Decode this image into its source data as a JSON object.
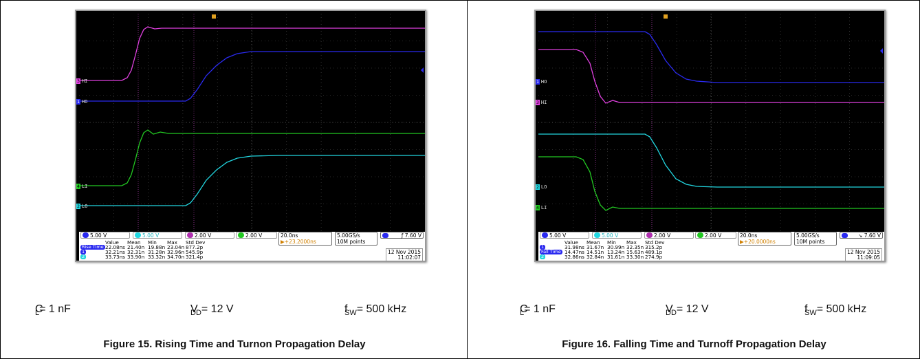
{
  "figures": [
    {
      "id": "fig15",
      "caption": "Figure 15. Rising Time and Turnon Propagation Delay",
      "conditions": {
        "cl": {
          "sym": "C",
          "sub": "L",
          "val": " = 1 nF"
        },
        "vdd": {
          "sym": "V",
          "sub": "DD",
          "val": " = 12 V"
        },
        "fsw": {
          "sym": "f",
          "sub": "SW",
          "val": " = 500 kHz"
        }
      },
      "scope": {
        "channels": [
          {
            "num": "1",
            "scale": "5.00 V",
            "color": "#2a2af0"
          },
          {
            "num": "2",
            "scale": "5.00 V",
            "color": "#22d6e0"
          },
          {
            "num": "3",
            "scale": "2.00 V",
            "color": "#e040e0"
          },
          {
            "num": "4",
            "scale": "2.00 V",
            "color": "#22c822"
          }
        ],
        "timebase": "20.0ns",
        "trigger_pos": "+23.2000ns",
        "sample_rate": "5.00GS/s",
        "record_length": "10M points",
        "trigger_level": "7.60 V",
        "trigger_edge": "rising",
        "trace_labels": [
          {
            "text": "HI",
            "num": "3"
          },
          {
            "text": "HO",
            "num": "1"
          },
          {
            "text": "LI",
            "num": "4"
          },
          {
            "text": "LO",
            "num": "2"
          }
        ],
        "measurements": {
          "headers": [
            "Value",
            "Mean",
            "Min",
            "Max",
            "Std Dev"
          ],
          "rows": [
            {
              "label": "Rise Time",
              "values": [
                "22.08ns",
                "21.40n",
                "19.88n",
                "23.04n",
                "877.2p"
              ]
            },
            {
              "label": "",
              "values": [
                "32.21ns",
                "32.31n",
                "31.28n",
                "32.96n",
                "545.9p"
              ]
            },
            {
              "label": "",
              "values": [
                "33.73ns",
                "33.90n",
                "33.32n",
                "34.70n",
                "321.4p"
              ]
            }
          ]
        },
        "date": "12 Nov 2015",
        "time": "11:02:07"
      }
    },
    {
      "id": "fig16",
      "caption": "Figure 16. Falling Time and Turnoff Propagation Delay",
      "conditions": {
        "cl": {
          "sym": "C",
          "sub": "L",
          "val": " = 1 nF"
        },
        "vdd": {
          "sym": "V",
          "sub": "DD",
          "val": " = 12 V"
        },
        "fsw": {
          "sym": "f",
          "sub": "SW",
          "val": " = 500 kHz"
        }
      },
      "scope": {
        "channels": [
          {
            "num": "1",
            "scale": "5.00 V",
            "color": "#2a2af0"
          },
          {
            "num": "2",
            "scale": "5.00 V",
            "color": "#22d6e0"
          },
          {
            "num": "3",
            "scale": "2.00 V",
            "color": "#e040e0"
          },
          {
            "num": "4",
            "scale": "2.00 V",
            "color": "#22c822"
          }
        ],
        "timebase": "20.0ns",
        "trigger_pos": "+20.0000ns",
        "sample_rate": "5.00GS/s",
        "record_length": "10M points",
        "trigger_level": "7.60 V",
        "trigger_edge": "falling",
        "trace_labels": [
          {
            "text": "HO",
            "num": "1"
          },
          {
            "text": "HI",
            "num": "3"
          },
          {
            "text": "LO",
            "num": "2"
          },
          {
            "text": "LI",
            "num": "4"
          }
        ],
        "measurements": {
          "headers": [
            "Value",
            "Mean",
            "Min",
            "Max",
            "Std Dev"
          ],
          "rows": [
            {
              "label": "",
              "values": [
                "31.98ns",
                "31.67n",
                "30.99n",
                "32.35n",
                "315.2p"
              ]
            },
            {
              "label": "Fall Time",
              "values": [
                "14.47ns",
                "14.51n",
                "13.24n",
                "15.63n",
                "489.1p"
              ]
            },
            {
              "label": "",
              "values": [
                "32.86ns",
                "32.84n",
                "31.61n",
                "33.30n",
                "274.9p"
              ]
            }
          ]
        },
        "date": "12 Nov 2015",
        "time": "11:09:05"
      }
    }
  ]
}
